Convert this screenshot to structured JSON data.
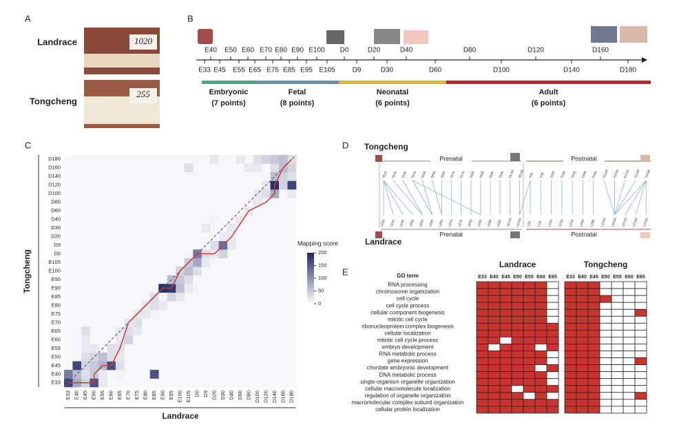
{
  "panel_labels": [
    "A",
    "B",
    "C",
    "D",
    "E"
  ],
  "panel_a": {
    "rows": [
      {
        "name": "Landrace",
        "tag": "1020"
      },
      {
        "name": "Tongcheng",
        "tag": "255"
      }
    ]
  },
  "timeline": {
    "stages": [
      {
        "name": "Embryonic",
        "label": "(7 points)",
        "color": "#55a482",
        "points": [
          "E33",
          "E40",
          "E45",
          "E50",
          "E55",
          "E60",
          "E65"
        ]
      },
      {
        "name": "Fetal",
        "label": "(8 points)",
        "color": "#6a8ea8",
        "points": [
          "E70",
          "E75",
          "E80",
          "E85",
          "E90",
          "E95",
          "E100",
          "E105"
        ]
      },
      {
        "name": "Neonatal",
        "label": "(6 points)",
        "color": "#d8b63c",
        "points": [
          "D0",
          "D9",
          "D20",
          "D30",
          "D40",
          "D60"
        ]
      },
      {
        "name": "Adult",
        "label": "(6 points)",
        "color": "#b5282e",
        "points": [
          "D80",
          "D100",
          "D120",
          "D140",
          "D160",
          "D180"
        ]
      }
    ]
  },
  "chart_data": {
    "type": "heatmap",
    "x_label": "Landrace",
    "y_label": "Tongcheng",
    "categories": [
      "E33",
      "E40",
      "E45",
      "E50",
      "E55",
      "E60",
      "E65",
      "E70",
      "E75",
      "E80",
      "E85",
      "E90",
      "E95",
      "E100",
      "E105",
      "D0",
      "D9",
      "D20",
      "D30",
      "D40",
      "D60",
      "D80",
      "D100",
      "D120",
      "D140",
      "D160",
      "D180"
    ],
    "values": [
      [
        170,
        80,
        40,
        160,
        20,
        0,
        0,
        0,
        0,
        0,
        0,
        0,
        0,
        0,
        0,
        0,
        0,
        0,
        0,
        0,
        0,
        0,
        0,
        0,
        0,
        0,
        0
      ],
      [
        120,
        60,
        30,
        50,
        20,
        0,
        10,
        0,
        0,
        0,
        160,
        0,
        0,
        0,
        0,
        0,
        0,
        0,
        0,
        0,
        0,
        0,
        0,
        0,
        0,
        0,
        0
      ],
      [
        0,
        170,
        40,
        50,
        70,
        160,
        30,
        0,
        0,
        0,
        0,
        0,
        0,
        0,
        0,
        0,
        0,
        0,
        0,
        0,
        0,
        0,
        0,
        0,
        0,
        0,
        0
      ],
      [
        0,
        0,
        30,
        40,
        60,
        30,
        20,
        0,
        0,
        0,
        0,
        0,
        0,
        0,
        0,
        0,
        0,
        0,
        0,
        0,
        0,
        0,
        0,
        0,
        0,
        0,
        0
      ],
      [
        0,
        0,
        20,
        20,
        0,
        30,
        30,
        0,
        0,
        0,
        0,
        0,
        0,
        0,
        0,
        0,
        0,
        0,
        0,
        0,
        0,
        0,
        0,
        0,
        0,
        0,
        0
      ],
      [
        0,
        0,
        20,
        0,
        0,
        0,
        20,
        40,
        0,
        0,
        0,
        0,
        0,
        0,
        0,
        0,
        0,
        0,
        0,
        0,
        0,
        0,
        0,
        0,
        0,
        0,
        0
      ],
      [
        0,
        0,
        30,
        0,
        0,
        0,
        20,
        30,
        20,
        0,
        0,
        0,
        0,
        0,
        0,
        0,
        0,
        0,
        0,
        0,
        0,
        0,
        0,
        0,
        0,
        0,
        0
      ],
      [
        0,
        0,
        0,
        0,
        0,
        0,
        0,
        20,
        30,
        0,
        0,
        0,
        0,
        0,
        0,
        0,
        0,
        0,
        0,
        0,
        0,
        0,
        0,
        0,
        0,
        0,
        0
      ],
      [
        0,
        0,
        0,
        0,
        0,
        0,
        0,
        0,
        20,
        20,
        10,
        0,
        0,
        0,
        0,
        0,
        0,
        0,
        0,
        0,
        0,
        0,
        0,
        0,
        0,
        0,
        0
      ],
      [
        0,
        0,
        0,
        0,
        0,
        0,
        0,
        0,
        0,
        20,
        30,
        20,
        0,
        0,
        0,
        0,
        0,
        0,
        0,
        0,
        0,
        0,
        0,
        0,
        0,
        0,
        0
      ],
      [
        0,
        0,
        0,
        0,
        0,
        0,
        0,
        0,
        0,
        0,
        30,
        0,
        40,
        20,
        0,
        0,
        0,
        0,
        0,
        0,
        0,
        0,
        0,
        0,
        0,
        0,
        0
      ],
      [
        0,
        0,
        0,
        0,
        0,
        0,
        0,
        0,
        0,
        0,
        0,
        190,
        180,
        60,
        20,
        0,
        0,
        0,
        0,
        0,
        0,
        0,
        0,
        0,
        0,
        0,
        0
      ],
      [
        0,
        0,
        0,
        0,
        0,
        0,
        0,
        0,
        0,
        0,
        0,
        0,
        60,
        50,
        30,
        0,
        0,
        0,
        0,
        0,
        0,
        0,
        0,
        0,
        0,
        0,
        0
      ],
      [
        0,
        0,
        0,
        0,
        0,
        0,
        0,
        0,
        0,
        0,
        0,
        0,
        0,
        40,
        60,
        30,
        0,
        0,
        0,
        0,
        0,
        0,
        0,
        0,
        0,
        0,
        0
      ],
      [
        0,
        0,
        0,
        0,
        0,
        0,
        0,
        0,
        0,
        0,
        0,
        0,
        0,
        0,
        50,
        80,
        20,
        0,
        0,
        0,
        0,
        0,
        0,
        0,
        0,
        0,
        0
      ],
      [
        0,
        0,
        0,
        0,
        0,
        0,
        0,
        0,
        0,
        0,
        0,
        0,
        0,
        0,
        0,
        120,
        30,
        20,
        40,
        0,
        0,
        0,
        0,
        0,
        0,
        0,
        0
      ],
      [
        0,
        0,
        0,
        0,
        0,
        0,
        0,
        0,
        0,
        0,
        0,
        0,
        0,
        0,
        0,
        0,
        0,
        30,
        130,
        20,
        0,
        0,
        0,
        0,
        0,
        0,
        0
      ],
      [
        0,
        0,
        0,
        0,
        0,
        0,
        0,
        0,
        0,
        0,
        0,
        0,
        0,
        0,
        0,
        0,
        0,
        0,
        20,
        20,
        0,
        0,
        0,
        0,
        0,
        0,
        0
      ],
      [
        0,
        0,
        0,
        0,
        0,
        0,
        0,
        0,
        0,
        0,
        0,
        0,
        0,
        0,
        0,
        0,
        20,
        0,
        0,
        20,
        0,
        0,
        0,
        0,
        0,
        0,
        0
      ],
      [
        0,
        0,
        0,
        0,
        0,
        0,
        0,
        0,
        0,
        0,
        0,
        0,
        0,
        0,
        0,
        0,
        0,
        10,
        0,
        0,
        20,
        0,
        0,
        0,
        0,
        0,
        0
      ],
      [
        0,
        0,
        0,
        0,
        0,
        0,
        0,
        0,
        0,
        0,
        0,
        0,
        0,
        0,
        0,
        0,
        0,
        0,
        0,
        0,
        0,
        20,
        0,
        0,
        0,
        0,
        0
      ],
      [
        0,
        0,
        0,
        0,
        0,
        0,
        0,
        0,
        0,
        0,
        0,
        0,
        0,
        0,
        0,
        0,
        0,
        0,
        0,
        0,
        0,
        0,
        20,
        0,
        0,
        0,
        0
      ],
      [
        0,
        0,
        0,
        0,
        0,
        0,
        0,
        0,
        0,
        0,
        0,
        0,
        0,
        0,
        0,
        0,
        0,
        0,
        0,
        0,
        0,
        0,
        20,
        30,
        80,
        0,
        20
      ],
      [
        0,
        0,
        0,
        0,
        0,
        0,
        0,
        0,
        0,
        0,
        0,
        0,
        0,
        0,
        0,
        0,
        0,
        0,
        0,
        0,
        0,
        0,
        0,
        20,
        190,
        40,
        170
      ],
      [
        0,
        0,
        0,
        0,
        0,
        0,
        0,
        0,
        0,
        0,
        0,
        0,
        0,
        0,
        0,
        0,
        0,
        0,
        0,
        0,
        0,
        0,
        0,
        0,
        60,
        40,
        30
      ],
      [
        0,
        0,
        0,
        0,
        0,
        0,
        0,
        0,
        0,
        0,
        0,
        0,
        0,
        0,
        30,
        0,
        0,
        0,
        0,
        0,
        0,
        20,
        20,
        0,
        30,
        60,
        40
      ],
      [
        0,
        0,
        0,
        0,
        0,
        0,
        0,
        0,
        0,
        0,
        0,
        0,
        0,
        0,
        0,
        0,
        0,
        20,
        0,
        0,
        20,
        0,
        30,
        40,
        50,
        60,
        30
      ]
    ],
    "colorbar_title": "Mapping score",
    "clim": [
      0,
      200
    ],
    "cticks": [
      0,
      50,
      100,
      150,
      200
    ],
    "color": "#1c2566"
  },
  "panel_d": {
    "top_name": "Tongcheng",
    "bottom_name": "Landrace",
    "sections": [
      "Prenatal",
      "Postnatal"
    ],
    "top_labels": [
      "TE33",
      "TE40",
      "TE45",
      "TE50",
      "TE55",
      "TE60",
      "TE65",
      "TE70",
      "TE75",
      "TE80",
      "TE85",
      "TE90",
      "TE95",
      "TE100",
      "TE105",
      "TD0",
      "TD9",
      "TD20",
      "TD30",
      "TD40",
      "TD60",
      "TD80",
      "TD100",
      "TD120",
      "TD140",
      "TD160",
      "TD180"
    ],
    "bottom_labels": [
      "LE33",
      "LE40",
      "LE45",
      "LE50",
      "LE55",
      "LE60",
      "LE65",
      "LE70",
      "LE75",
      "LE80",
      "LE85",
      "LE90",
      "LE95",
      "LE100",
      "LE105",
      "LD0",
      "LD9",
      "LD20",
      "LD30",
      "LD40",
      "LD60",
      "LD80",
      "LD100",
      "LD120",
      "LD140",
      "LD160",
      "LD180"
    ],
    "links": [
      [
        0,
        0
      ],
      [
        0,
        1
      ],
      [
        0,
        2
      ],
      [
        0,
        3
      ],
      [
        1,
        4
      ],
      [
        2,
        4
      ],
      [
        3,
        5
      ],
      [
        3,
        10
      ],
      [
        4,
        5
      ],
      [
        5,
        6
      ],
      [
        6,
        6
      ],
      [
        7,
        7
      ],
      [
        8,
        8
      ],
      [
        9,
        9
      ],
      [
        10,
        10
      ],
      [
        11,
        11
      ],
      [
        12,
        12
      ],
      [
        13,
        13
      ],
      [
        14,
        14
      ],
      [
        15,
        14
      ],
      [
        15,
        15
      ],
      [
        16,
        16
      ],
      [
        17,
        17
      ],
      [
        18,
        18
      ],
      [
        19,
        19
      ],
      [
        20,
        20
      ],
      [
        21,
        21
      ],
      [
        22,
        23
      ],
      [
        23,
        23
      ],
      [
        24,
        23
      ],
      [
        25,
        23
      ],
      [
        26,
        23
      ],
      [
        26,
        24
      ],
      [
        26,
        25
      ],
      [
        26,
        26
      ]
    ]
  },
  "panel_e": {
    "header": "GO term",
    "columns": [
      "E33",
      "E40",
      "E45",
      "E50",
      "E55",
      "E60",
      "E65"
    ],
    "terms": [
      "RNA processing",
      "chromosome organization",
      "cell cycle",
      "cell cycle process",
      "cellular component biogenesis",
      "mitotic cell cycle",
      "ribonucleoprotein complex biogenesis",
      "cellular localization",
      "mitotic cell cycle process",
      "embryo development",
      "RNA metabolic process",
      "gene expression",
      "chordate embryonic development",
      "DNA metabolic process",
      "single-organism organelle organization",
      "cellular macromolecule localization",
      "regulation of organelle organization",
      "macromolecular complex subunit organization",
      "cellular protein localization"
    ],
    "groups": [
      {
        "name": "Landrace",
        "cells": [
          [
            1,
            1,
            1,
            1,
            1,
            1,
            0
          ],
          [
            1,
            1,
            1,
            1,
            1,
            1,
            0
          ],
          [
            1,
            1,
            1,
            1,
            1,
            1,
            0
          ],
          [
            1,
            1,
            1,
            1,
            1,
            1,
            0
          ],
          [
            1,
            1,
            1,
            1,
            1,
            1,
            0
          ],
          [
            1,
            1,
            1,
            1,
            1,
            1,
            0
          ],
          [
            1,
            1,
            1,
            1,
            1,
            1,
            1
          ],
          [
            1,
            1,
            1,
            1,
            1,
            1,
            1
          ],
          [
            1,
            1,
            0,
            1,
            1,
            1,
            1
          ],
          [
            1,
            0,
            1,
            1,
            1,
            0,
            1
          ],
          [
            1,
            1,
            1,
            1,
            1,
            1,
            0
          ],
          [
            1,
            1,
            1,
            1,
            1,
            1,
            0
          ],
          [
            1,
            1,
            1,
            1,
            1,
            0,
            1
          ],
          [
            1,
            1,
            1,
            1,
            1,
            1,
            0
          ],
          [
            1,
            1,
            1,
            1,
            1,
            1,
            0
          ],
          [
            1,
            1,
            1,
            0,
            1,
            1,
            1
          ],
          [
            1,
            1,
            1,
            1,
            0,
            1,
            0
          ],
          [
            1,
            1,
            1,
            1,
            1,
            1,
            1
          ],
          [
            1,
            1,
            1,
            1,
            1,
            1,
            1
          ]
        ]
      },
      {
        "name": "Tongcheng",
        "cells": [
          [
            1,
            1,
            1,
            0,
            0,
            0,
            0
          ],
          [
            1,
            1,
            1,
            0,
            0,
            0,
            0
          ],
          [
            1,
            1,
            1,
            1,
            0,
            0,
            0
          ],
          [
            1,
            1,
            1,
            0,
            0,
            0,
            0
          ],
          [
            1,
            1,
            1,
            0,
            0,
            0,
            1
          ],
          [
            1,
            1,
            1,
            0,
            0,
            0,
            0
          ],
          [
            1,
            1,
            1,
            0,
            0,
            0,
            0
          ],
          [
            1,
            1,
            1,
            0,
            0,
            0,
            0
          ],
          [
            1,
            1,
            1,
            0,
            0,
            0,
            0
          ],
          [
            1,
            1,
            1,
            0,
            0,
            0,
            0
          ],
          [
            1,
            1,
            1,
            0,
            0,
            0,
            0
          ],
          [
            1,
            1,
            1,
            0,
            0,
            0,
            1
          ],
          [
            1,
            1,
            1,
            0,
            0,
            0,
            0
          ],
          [
            1,
            1,
            1,
            0,
            0,
            0,
            0
          ],
          [
            1,
            1,
            1,
            0,
            0,
            0,
            0
          ],
          [
            1,
            1,
            1,
            0,
            0,
            0,
            0
          ],
          [
            1,
            1,
            1,
            0,
            0,
            0,
            1
          ],
          [
            1,
            1,
            1,
            0,
            0,
            0,
            0
          ],
          [
            1,
            1,
            1,
            0,
            0,
            0,
            0
          ]
        ]
      }
    ]
  }
}
